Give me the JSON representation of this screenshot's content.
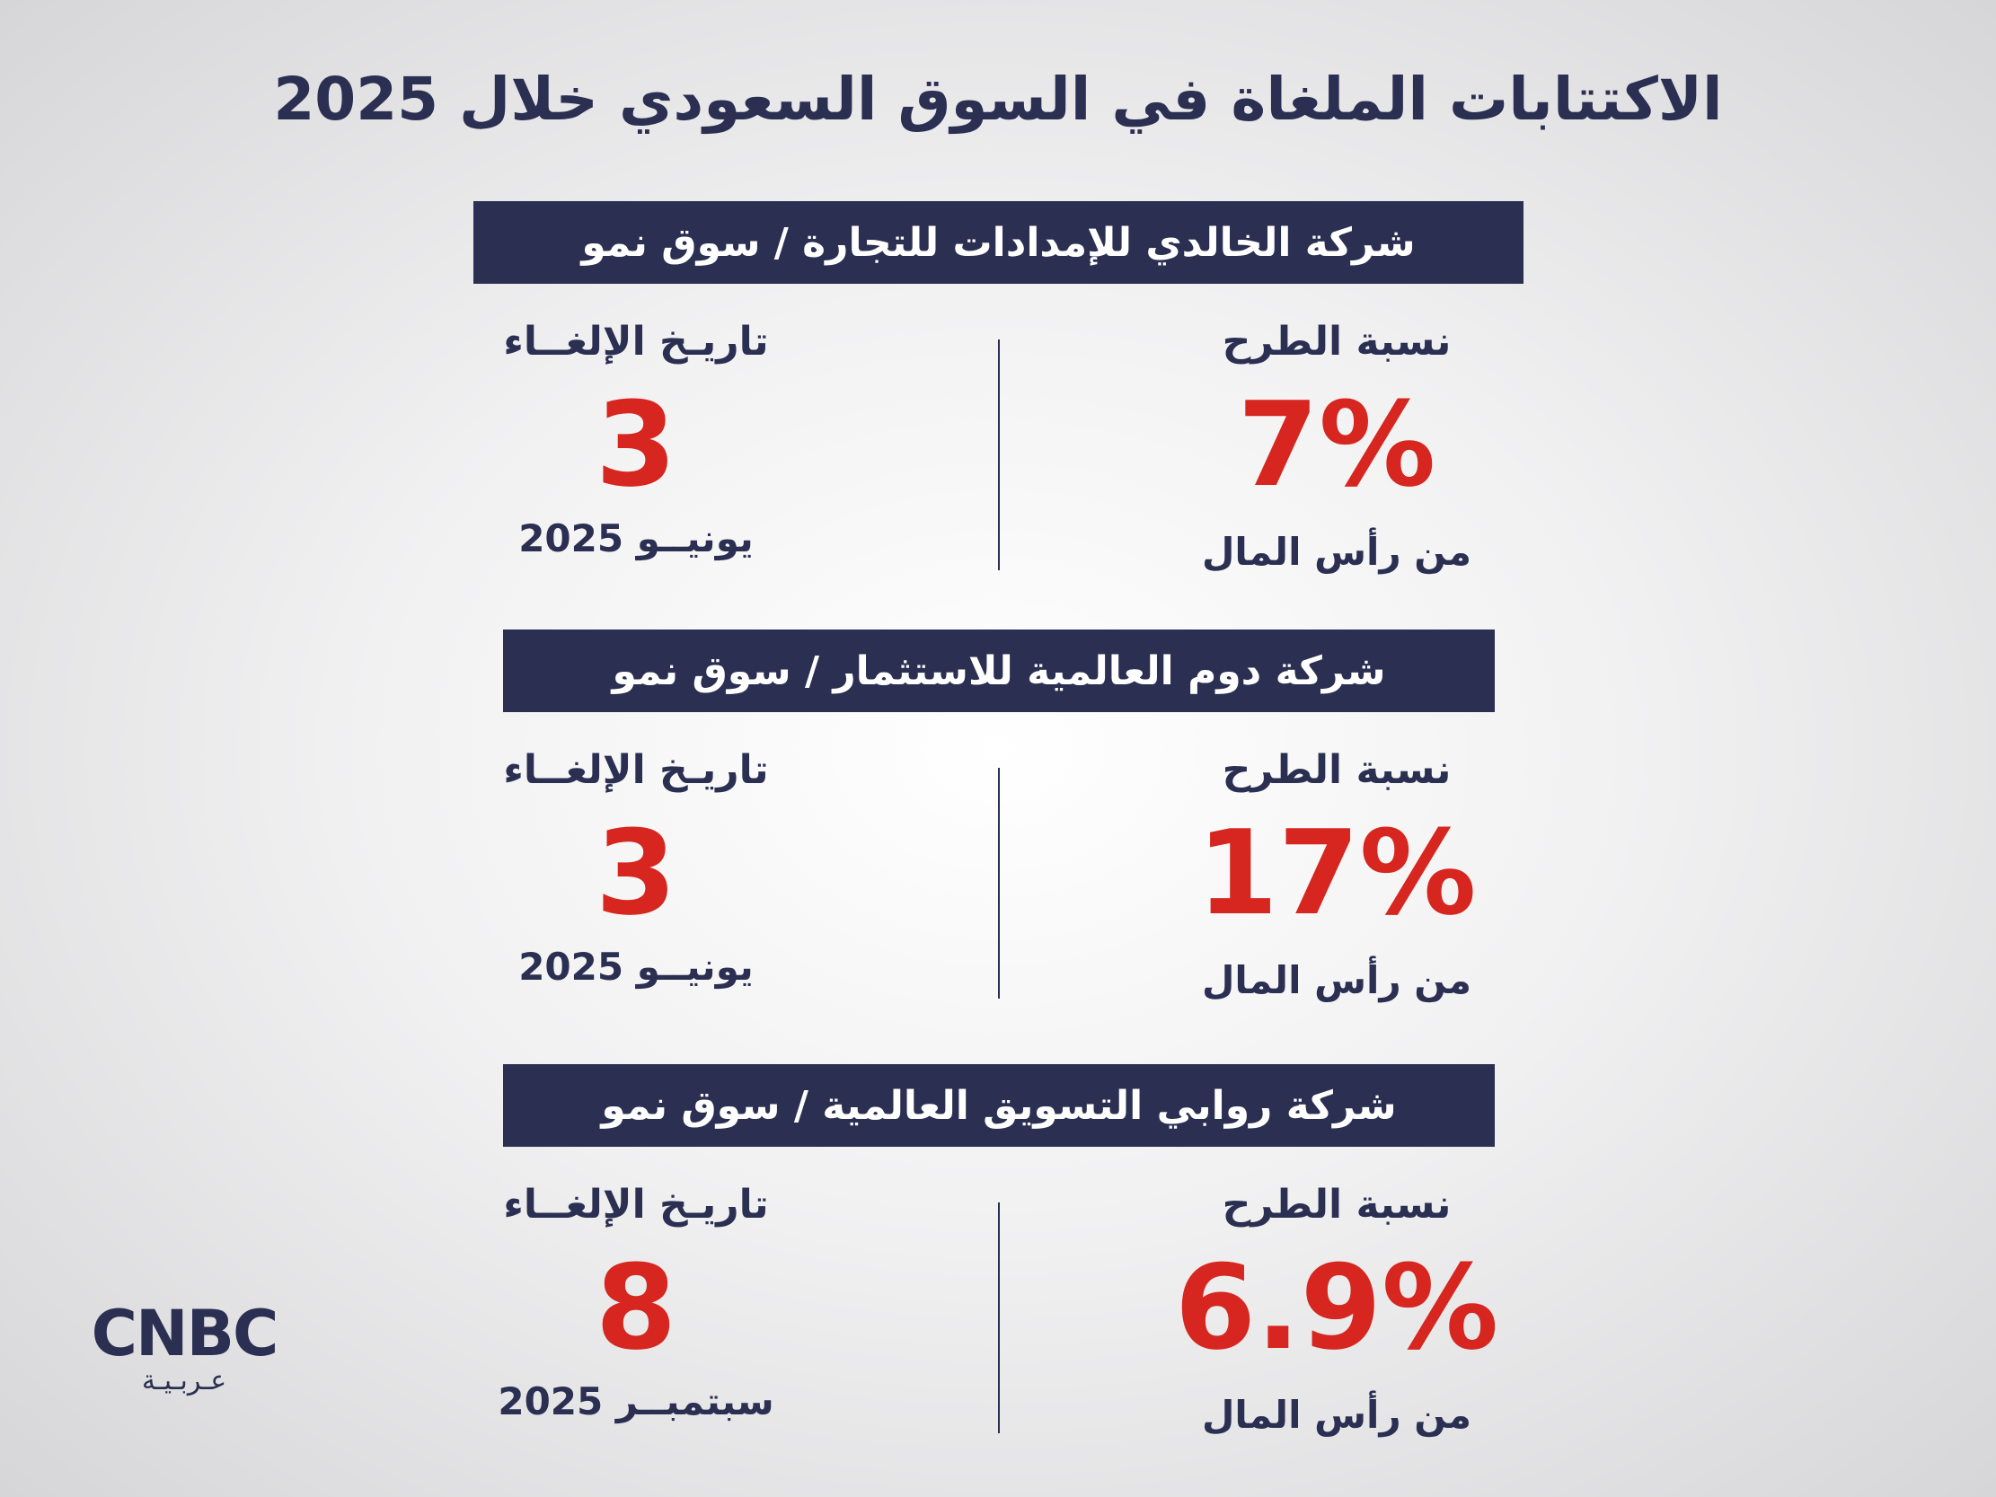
{
  "title": "الاكتتابات الملغاة في السوق السعودي خلال 2025",
  "companies": [
    {
      "name": "شركة الخالدي للإمدادات للتجارة / سوق نمو",
      "offer_label": "نسبة الطرح",
      "offer_value": "7%",
      "offer_note": "من رأس المال",
      "date_label": "تاريـخ الإلغــاء",
      "day": "3",
      "month_year": "يونيــو 2025"
    },
    {
      "name": "شركة دوم العالمية للاستثمار / سوق نمو",
      "offer_label": "نسبة الطرح",
      "offer_value": "17%",
      "offer_note": "من رأس المال",
      "date_label": "تاريـخ الإلغــاء",
      "day": "3",
      "month_year": "يونيــو 2025"
    },
    {
      "name": "شركة روابي التسويق العالمية / سوق نمو",
      "offer_label": "نسبة الطرح",
      "offer_value": "6.9%",
      "offer_note": "من رأس المال",
      "date_label": "تاريـخ الإلغــاء",
      "day": "8",
      "month_year": "سبتمبــر 2025"
    }
  ],
  "logo": {
    "brand": "CNBC",
    "sub": "عـربـيـة"
  }
}
